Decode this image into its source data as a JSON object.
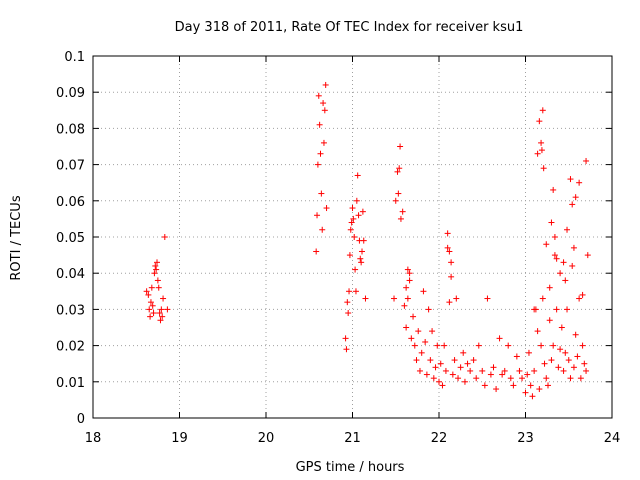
{
  "chart_data": {
    "type": "scatter",
    "title": "Day 318 of 2011, Rate Of TEC Index for receiver ksu1",
    "xlabel": "GPS time / hours",
    "ylabel": "ROTI / TECUs",
    "xlim": [
      18,
      24
    ],
    "ylim": [
      0,
      0.1
    ],
    "x_ticks": [
      "18",
      "19",
      "20",
      "21",
      "22",
      "23",
      "24"
    ],
    "y_ticks": [
      "0",
      "0.01",
      "0.02",
      "0.03",
      "0.04",
      "0.05",
      "0.06",
      "0.07",
      "0.08",
      "0.09",
      "0.1"
    ],
    "grid": true,
    "marker": "plus",
    "color": "#ff0000",
    "series": [
      {
        "x": [
          18.62,
          18.64,
          18.65,
          18.66,
          18.67,
          18.68,
          18.69,
          18.7,
          18.71,
          18.72,
          18.73,
          18.74,
          18.75,
          18.76,
          18.77,
          18.78,
          18.79,
          18.8,
          18.81,
          18.83,
          18.86,
          20.58,
          20.59,
          20.6,
          20.61,
          20.62,
          20.63,
          20.64,
          20.65,
          20.66,
          20.67,
          20.68,
          20.69,
          20.7,
          20.92,
          20.93,
          20.94,
          20.95,
          20.96,
          20.97,
          20.98,
          20.99,
          21.0,
          21.01,
          21.02,
          21.03,
          21.04,
          21.05,
          21.06,
          21.07,
          21.08,
          21.09,
          21.1,
          21.11,
          21.12,
          21.13,
          21.15,
          21.48,
          21.5,
          21.52,
          21.53,
          21.54,
          21.55,
          21.56,
          21.58,
          21.6,
          21.62,
          21.64,
          21.66,
          21.68,
          21.7,
          21.72,
          21.74,
          21.76,
          21.78,
          21.8,
          21.82,
          21.84,
          21.86,
          21.88,
          21.9,
          21.92,
          21.94,
          21.96,
          21.98,
          22.0,
          22.02,
          22.04,
          22.06,
          22.08,
          22.1,
          22.12,
          22.14,
          22.16,
          22.18,
          22.2,
          22.22,
          22.25,
          22.28,
          22.3,
          22.33,
          22.36,
          22.4,
          22.43,
          22.46,
          22.5,
          22.53,
          22.56,
          22.6,
          22.63,
          22.66,
          22.7,
          22.73,
          22.76,
          22.8,
          22.83,
          22.86,
          22.9,
          22.93,
          22.96,
          23.0,
          23.02,
          23.04,
          23.06,
          23.08,
          23.1,
          23.12,
          23.14,
          23.16,
          23.18,
          23.2,
          23.22,
          23.24,
          23.26,
          23.28,
          23.3,
          23.32,
          23.34,
          23.36,
          23.38,
          23.4,
          23.42,
          23.44,
          23.46,
          23.48,
          23.5,
          23.52,
          23.54,
          23.56,
          23.58,
          23.6,
          23.62,
          23.64,
          23.66,
          23.68,
          23.7,
          23.72,
          23.16,
          23.18,
          23.2,
          23.19,
          23.21,
          23.3,
          23.32,
          23.34,
          23.44,
          23.46,
          23.48,
          23.52,
          23.54,
          23.56,
          23.58,
          23.62,
          23.66,
          23.7,
          23.4,
          23.36,
          23.28,
          23.24,
          23.1,
          23.14,
          22.12,
          22.1,
          22.14,
          21.64,
          21.66,
          21.62
        ],
        "y": [
          0.035,
          0.034,
          0.03,
          0.028,
          0.032,
          0.036,
          0.031,
          0.029,
          0.04,
          0.042,
          0.041,
          0.043,
          0.038,
          0.036,
          0.029,
          0.027,
          0.03,
          0.028,
          0.033,
          0.05,
          0.03,
          0.046,
          0.056,
          0.07,
          0.089,
          0.081,
          0.073,
          0.062,
          0.052,
          0.087,
          0.076,
          0.085,
          0.092,
          0.058,
          0.022,
          0.019,
          0.032,
          0.029,
          0.035,
          0.045,
          0.052,
          0.054,
          0.058,
          0.055,
          0.05,
          0.041,
          0.035,
          0.06,
          0.067,
          0.056,
          0.049,
          0.044,
          0.043,
          0.046,
          0.057,
          0.049,
          0.033,
          0.033,
          0.06,
          0.068,
          0.062,
          0.069,
          0.075,
          0.055,
          0.057,
          0.031,
          0.025,
          0.033,
          0.04,
          0.022,
          0.028,
          0.02,
          0.016,
          0.024,
          0.013,
          0.018,
          0.035,
          0.021,
          0.012,
          0.03,
          0.016,
          0.024,
          0.011,
          0.014,
          0.02,
          0.01,
          0.015,
          0.009,
          0.02,
          0.013,
          0.047,
          0.032,
          0.039,
          0.012,
          0.016,
          0.033,
          0.011,
          0.014,
          0.018,
          0.01,
          0.015,
          0.013,
          0.016,
          0.011,
          0.02,
          0.013,
          0.009,
          0.033,
          0.012,
          0.014,
          0.008,
          0.022,
          0.012,
          0.013,
          0.02,
          0.011,
          0.009,
          0.017,
          0.013,
          0.011,
          0.007,
          0.012,
          0.018,
          0.009,
          0.006,
          0.013,
          0.03,
          0.024,
          0.008,
          0.02,
          0.033,
          0.015,
          0.011,
          0.009,
          0.027,
          0.016,
          0.02,
          0.045,
          0.03,
          0.014,
          0.019,
          0.025,
          0.013,
          0.018,
          0.03,
          0.016,
          0.011,
          0.042,
          0.014,
          0.023,
          0.017,
          0.033,
          0.011,
          0.02,
          0.015,
          0.013,
          0.045,
          0.082,
          0.076,
          0.085,
          0.074,
          0.069,
          0.054,
          0.063,
          0.05,
          0.043,
          0.038,
          0.052,
          0.066,
          0.059,
          0.047,
          0.061,
          0.065,
          0.034,
          0.071,
          0.04,
          0.044,
          0.036,
          0.048,
          0.03,
          0.073,
          0.046,
          0.051,
          0.043,
          0.041,
          0.038,
          0.036
        ]
      }
    ]
  }
}
